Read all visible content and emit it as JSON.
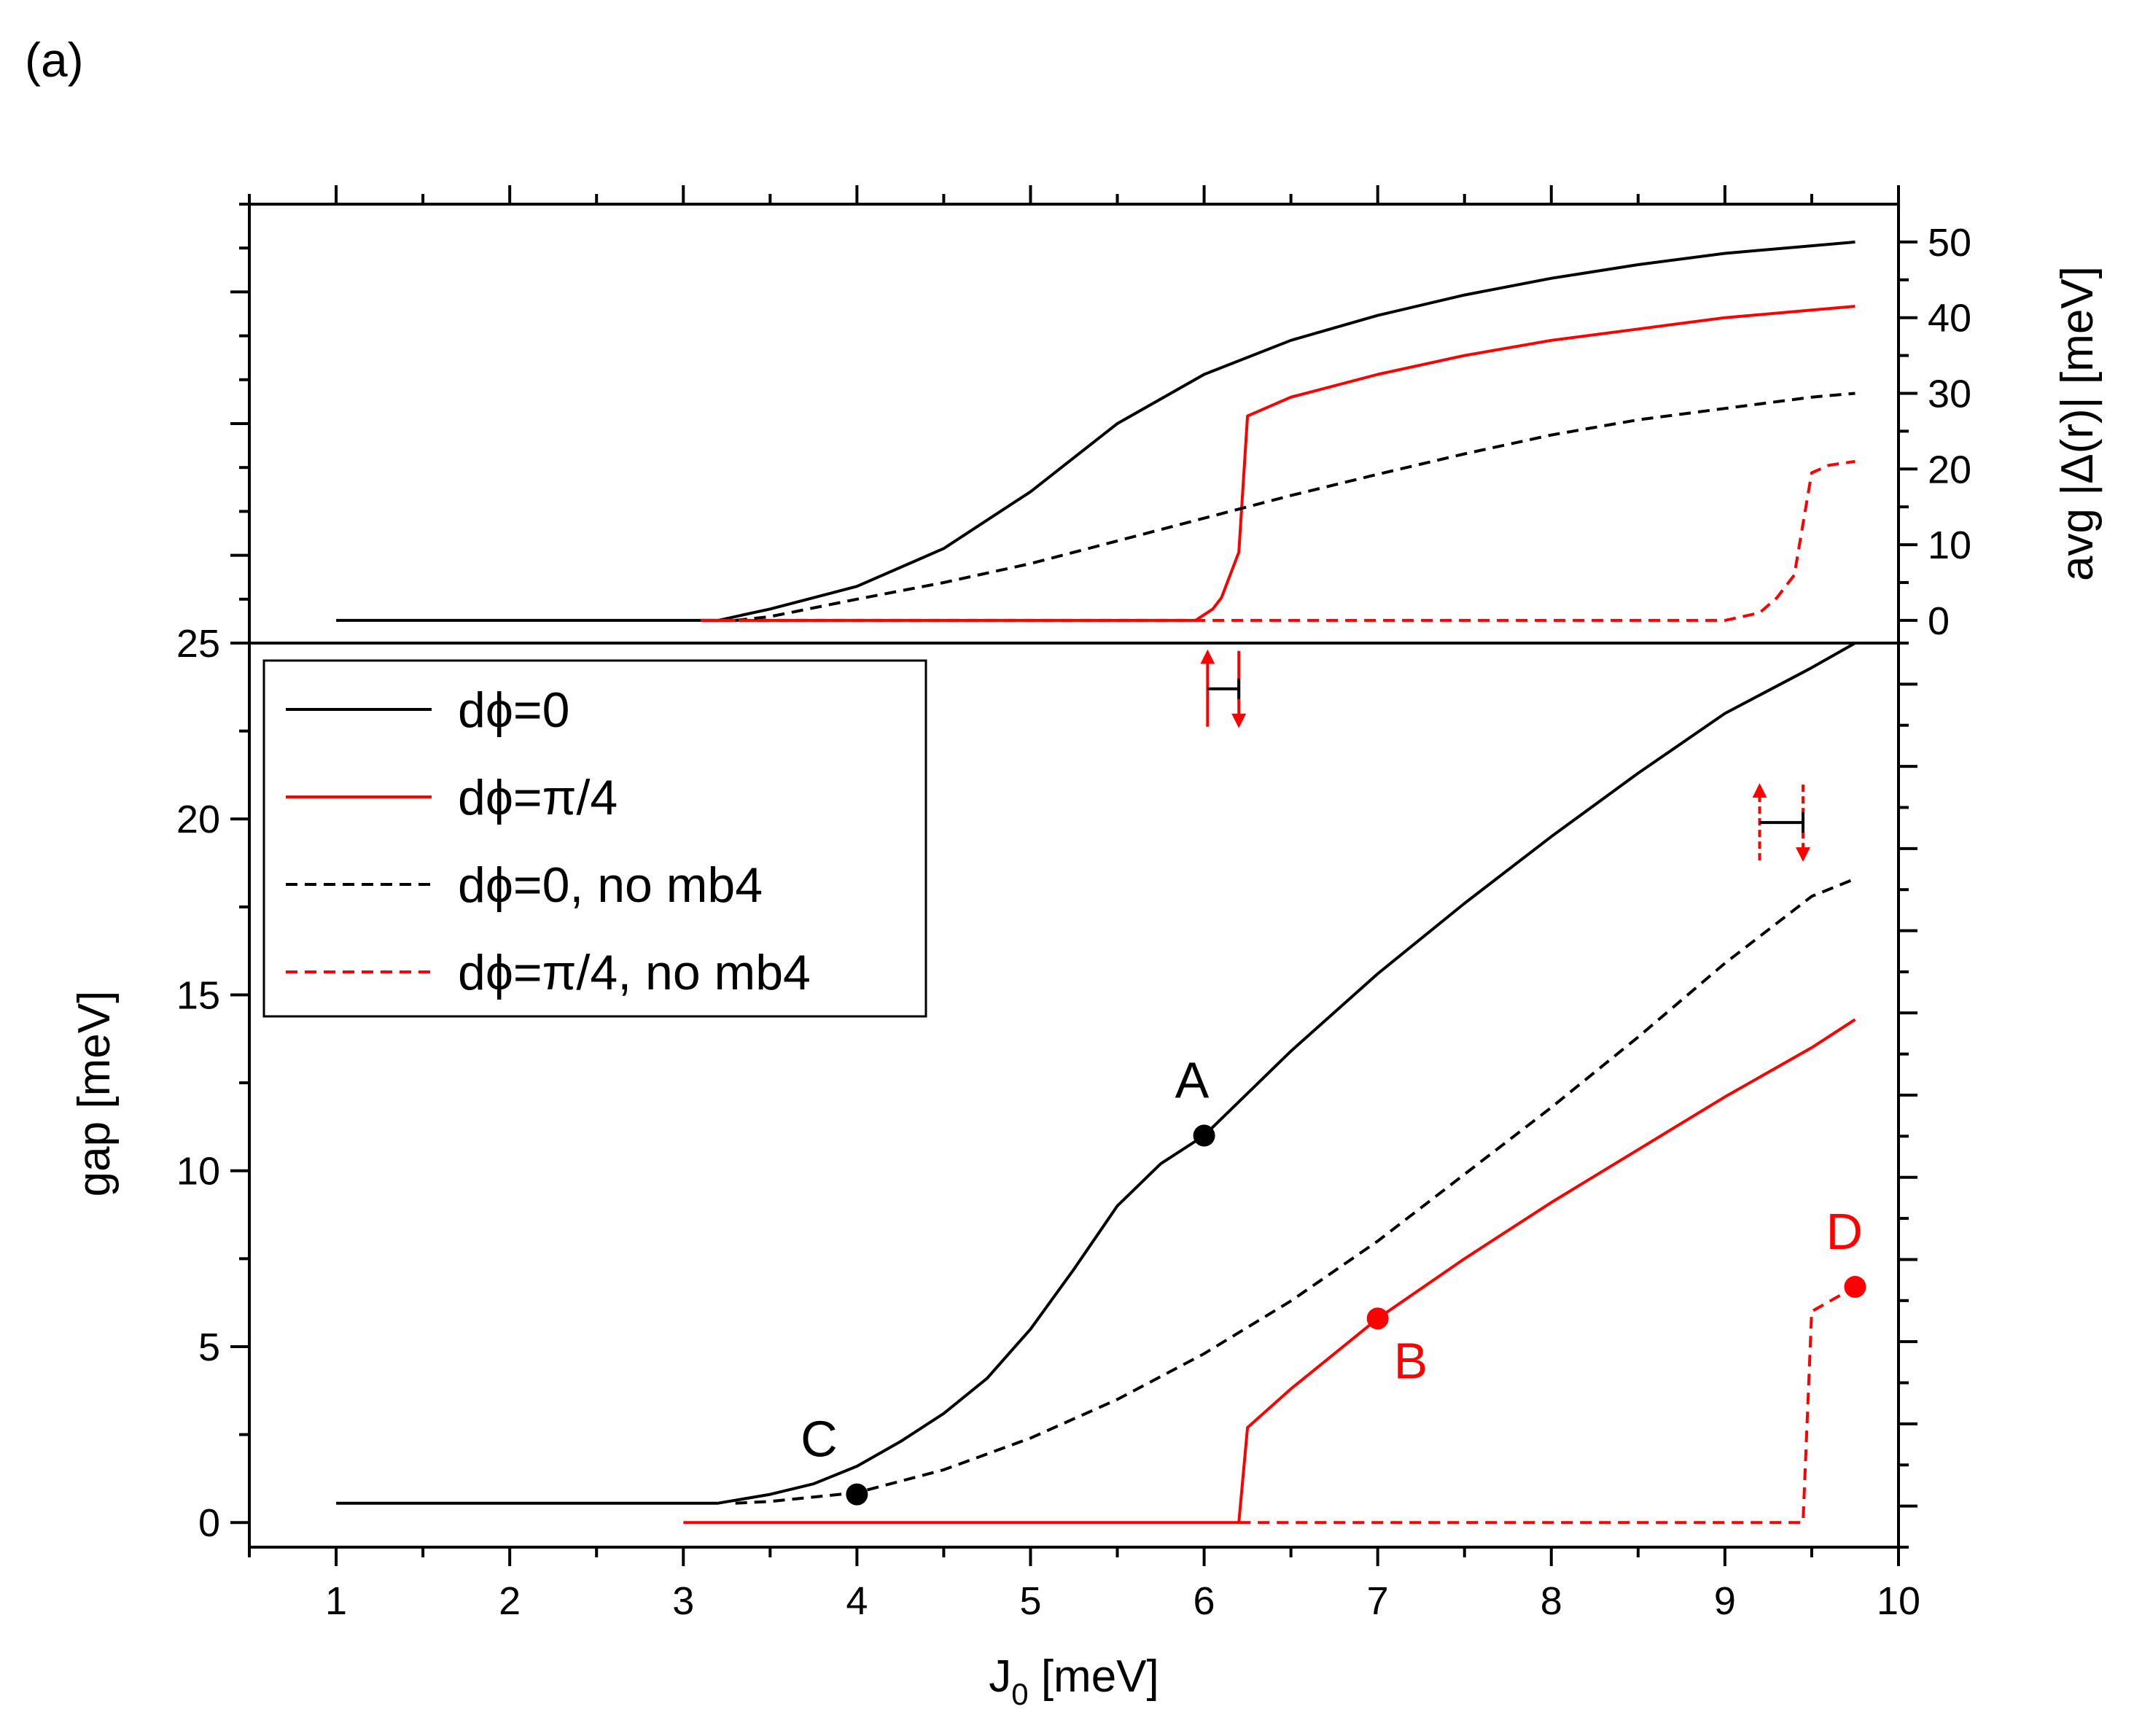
{
  "panel_label": "(a)",
  "colors": {
    "black": "#000000",
    "red": "#ff0000"
  },
  "legend": [
    {
      "label": "dϕ=0",
      "color": "#000000",
      "dashed": false
    },
    {
      "label": "dϕ=π/4",
      "color": "#ff0000",
      "dashed": false
    },
    {
      "label": "dϕ=0, no mb4",
      "color": "#000000",
      "dashed": true
    },
    {
      "label": "dϕ=π/4, no mb4",
      "color": "#ff0000",
      "dashed": true
    }
  ],
  "chart_data": [
    {
      "type": "line",
      "panel": "top",
      "title": "",
      "xlabel": "",
      "ylabel": "avg |Δ(r)| [meV]",
      "xlim": [
        0.5,
        10
      ],
      "ylim": [
        -3,
        55
      ],
      "y_ticks": [
        0,
        10,
        20,
        30,
        40,
        50
      ],
      "series": [
        {
          "name": "dϕ=0",
          "color": "#000000",
          "dashed": false,
          "x": [
            1,
            3.2,
            3.5,
            4,
            4.5,
            5,
            5.5,
            6,
            6.5,
            7,
            7.5,
            8,
            8.5,
            9,
            9.5,
            9.75
          ],
          "y": [
            0,
            0,
            1.5,
            4.5,
            9.5,
            17,
            26,
            32.5,
            37,
            40.3,
            43,
            45.2,
            47,
            48.5,
            49.5,
            50
          ]
        },
        {
          "name": "dϕ=π/4",
          "color": "#ff0000",
          "dashed": false,
          "x": [
            3.1,
            5.95,
            6.05,
            6.1,
            6.2,
            6.25,
            6.5,
            7,
            7.5,
            8,
            8.5,
            9,
            9.5,
            9.75
          ],
          "y": [
            0,
            0,
            1.5,
            3,
            9,
            27,
            29.5,
            32.5,
            35,
            37,
            38.5,
            40,
            41,
            41.5
          ]
        },
        {
          "name": "dϕ=0, no mb4",
          "color": "#000000",
          "dashed": true,
          "x": [
            3.3,
            3.5,
            4,
            4.5,
            5,
            5.5,
            6,
            6.5,
            7,
            7.5,
            8,
            8.5,
            9,
            9.5,
            9.75
          ],
          "y": [
            0,
            0.5,
            2.8,
            5,
            7.5,
            10.5,
            13.5,
            16.5,
            19.3,
            22,
            24.5,
            26.5,
            28,
            29.5,
            30
          ]
        },
        {
          "name": "dϕ=π/4, no mb4",
          "color": "#ff0000",
          "dashed": true,
          "x": [
            3.1,
            9,
            9.2,
            9.3,
            9.4,
            9.5,
            9.6,
            9.75
          ],
          "y": [
            0,
            0,
            1,
            3,
            6,
            19.5,
            20.5,
            21
          ]
        }
      ]
    },
    {
      "type": "line",
      "panel": "bottom",
      "title": "",
      "xlabel": "J0 [meV]",
      "ylabel": "gap [meV]",
      "xlim": [
        0.5,
        10
      ],
      "ylim": [
        -0.7,
        25
      ],
      "x_ticks": [
        1,
        2,
        3,
        4,
        5,
        6,
        7,
        8,
        9,
        10
      ],
      "y_ticks": [
        0,
        5,
        10,
        15,
        20,
        25
      ],
      "series": [
        {
          "name": "dϕ=0",
          "color": "#000000",
          "dashed": false,
          "x": [
            1,
            3.2,
            3.5,
            3.75,
            4,
            4.25,
            4.5,
            4.75,
            5,
            5.25,
            5.5,
            5.75,
            6,
            6.5,
            7,
            7.5,
            8,
            8.5,
            9,
            9.5,
            9.75
          ],
          "y": [
            0.55,
            0.55,
            0.8,
            1.1,
            1.6,
            2.3,
            3.1,
            4.1,
            5.5,
            7.2,
            9.0,
            10.2,
            11.0,
            13.4,
            15.6,
            17.6,
            19.5,
            21.3,
            23.0,
            24.3,
            25.0
          ]
        },
        {
          "name": "dϕ=π/4",
          "color": "#ff0000",
          "dashed": false,
          "x": [
            3,
            6.2,
            6.25,
            6.5,
            7,
            7.5,
            8,
            8.5,
            9,
            9.5,
            9.75
          ],
          "y": [
            0,
            0,
            2.7,
            3.8,
            5.8,
            7.5,
            9.1,
            10.6,
            12.1,
            13.5,
            14.3
          ]
        },
        {
          "name": "dϕ=0, no mb4",
          "color": "#000000",
          "dashed": true,
          "x": [
            3.3,
            3.5,
            4,
            4.5,
            5,
            5.5,
            6,
            6.5,
            7,
            7.5,
            8,
            8.5,
            9,
            9.5,
            9.75
          ],
          "y": [
            0.55,
            0.6,
            0.85,
            1.5,
            2.4,
            3.5,
            4.8,
            6.3,
            8.0,
            9.9,
            11.8,
            13.8,
            15.9,
            17.8,
            18.3
          ]
        },
        {
          "name": "dϕ=π/4, no mb4",
          "color": "#ff0000",
          "dashed": true,
          "x": [
            6.2,
            9.45,
            9.5,
            9.75
          ],
          "y": [
            0,
            0,
            6,
            6.7
          ]
        }
      ],
      "points": [
        {
          "label": "A",
          "x": 6,
          "y": 11,
          "color": "#000000",
          "label_pos": "above"
        },
        {
          "label": "B",
          "x": 7,
          "y": 5.8,
          "color": "#ff0000",
          "label_pos": "below-right"
        },
        {
          "label": "C",
          "x": 4,
          "y": 0.8,
          "color": "#000000",
          "label_pos": "above-left"
        },
        {
          "label": "D",
          "x": 9.75,
          "y": 6.7,
          "color": "#ff0000",
          "label_pos": "above"
        }
      ],
      "hysteresis_markers": [
        {
          "x_up": 6.02,
          "x_down": 6.2,
          "y_center": 23.7,
          "color": "#ff0000",
          "dashed": false
        },
        {
          "x_up": 9.2,
          "x_down": 9.45,
          "y_center": 19.9,
          "color": "#ff0000",
          "dashed": true
        }
      ]
    }
  ]
}
